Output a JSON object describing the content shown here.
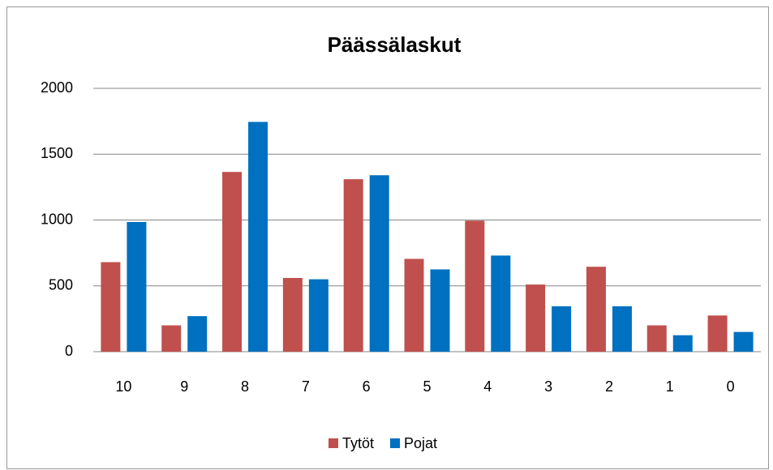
{
  "chart_data": {
    "type": "bar",
    "title": "Päässälaskut",
    "categories": [
      "10",
      "9",
      "8",
      "7",
      "6",
      "5",
      "4",
      "3",
      "2",
      "1",
      "0"
    ],
    "series": [
      {
        "name": "Tytöt",
        "color": "#c0504d",
        "values": [
          680,
          200,
          1365,
          560,
          1310,
          705,
          995,
          510,
          645,
          200,
          275
        ]
      },
      {
        "name": "Pojat",
        "color": "#0070c0",
        "values": [
          985,
          270,
          1745,
          550,
          1340,
          625,
          730,
          345,
          345,
          125,
          150
        ]
      }
    ],
    "ylim": [
      0,
      2000
    ],
    "yticks": [
      0,
      500,
      1000,
      1500,
      2000
    ],
    "grid": true,
    "legend": "bottom"
  }
}
